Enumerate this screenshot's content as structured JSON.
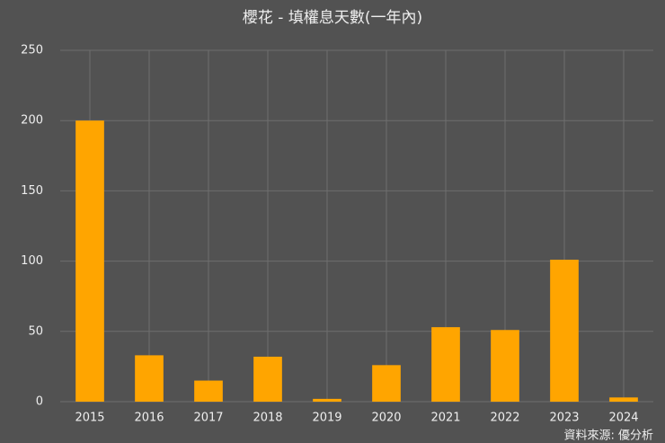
{
  "chart_data": {
    "type": "bar",
    "title": "櫻花 - 填權息天數(一年內)",
    "categories": [
      "2015",
      "2016",
      "2017",
      "2018",
      "2019",
      "2020",
      "2021",
      "2022",
      "2023",
      "2024"
    ],
    "values": [
      200,
      33,
      15,
      32,
      2,
      26,
      53,
      51,
      101,
      3
    ],
    "color": "#ffa500",
    "ylim": [
      0,
      250
    ],
    "yticks": [
      0,
      50,
      100,
      150,
      200,
      250
    ],
    "grid": true,
    "source": "資料來源: 優分析"
  }
}
